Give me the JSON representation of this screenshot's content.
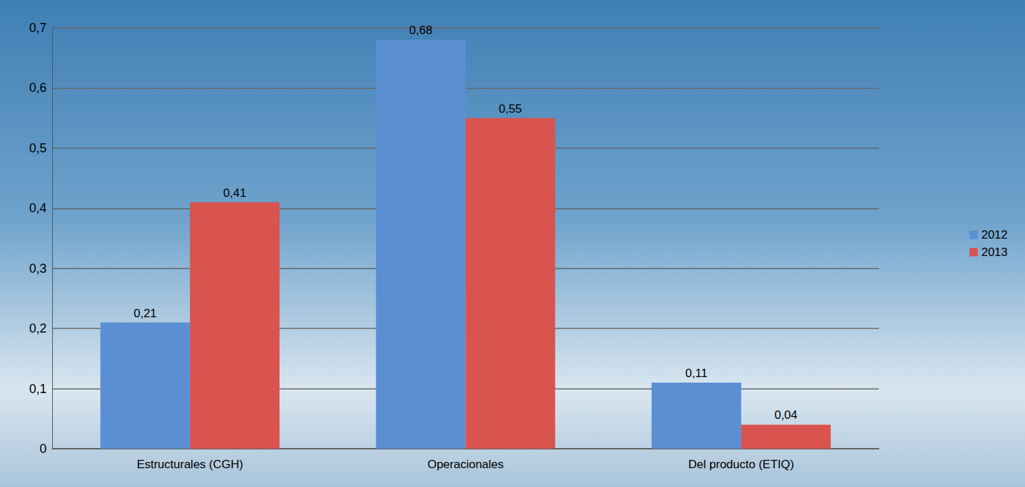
{
  "chart_data": {
    "type": "bar",
    "categories": [
      "Estructurales (CGH)",
      "Operacionales",
      "Del producto (ETIQ)"
    ],
    "series": [
      {
        "name": "2012",
        "color": "#5b8fd4",
        "values": [
          0.21,
          0.68,
          0.11
        ],
        "value_labels": [
          "0,21",
          "0,68",
          "0,11"
        ]
      },
      {
        "name": "2013",
        "color": "#d9534f",
        "values": [
          0.41,
          0.55,
          0.04
        ],
        "value_labels": [
          "0,41",
          "0,55",
          "0,04"
        ]
      }
    ],
    "ylim": [
      0,
      0.7
    ],
    "yticks": [
      0,
      {
        "value": 0.1,
        "label": "0,1"
      },
      {
        "value": 0.2,
        "label": "0,2"
      },
      {
        "value": 0.3,
        "label": "0,3"
      },
      {
        "value": 0.4,
        "label": "0,4"
      },
      {
        "value": 0.5,
        "label": "0,5"
      },
      {
        "value": 0.6,
        "label": "0,6"
      },
      {
        "value": 0.7,
        "label": "0,7"
      }
    ],
    "grid": true,
    "legend": "right",
    "data_labels": true
  }
}
